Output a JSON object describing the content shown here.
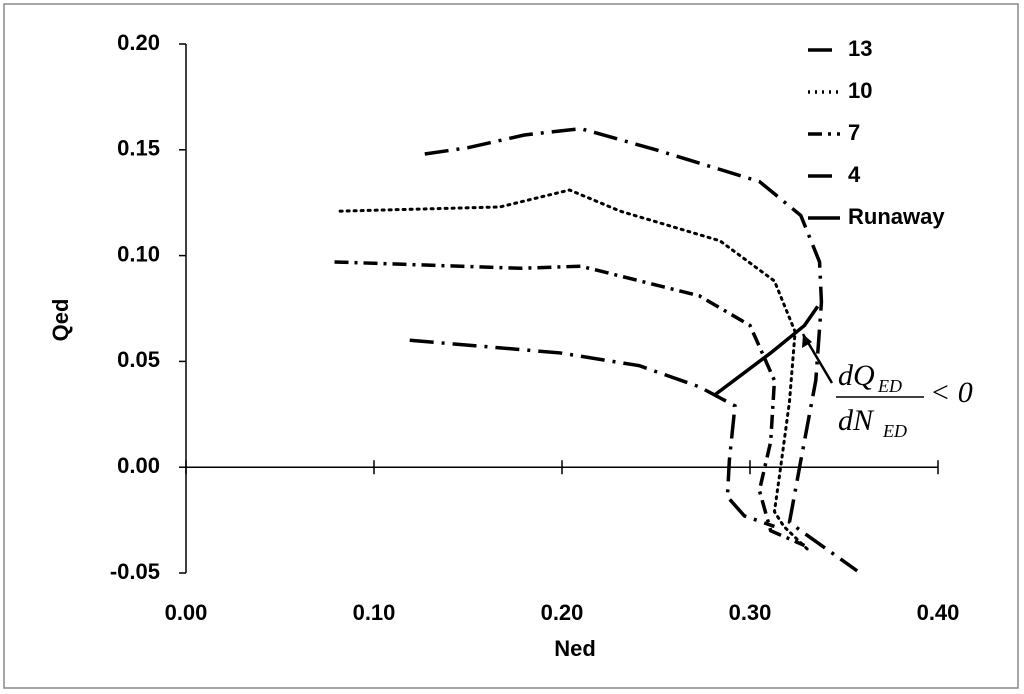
{
  "chart_data": {
    "type": "line",
    "x_label": "Ned",
    "y_label": "Qed",
    "xlim": [
      0,
      0.4
    ],
    "ylim": [
      -0.05,
      0.2
    ],
    "xticks": [
      {
        "value": 0,
        "label": "0.00"
      },
      {
        "value": 0.1,
        "label": "0.10"
      },
      {
        "value": 0.2,
        "label": "0.20"
      },
      {
        "value": 0.3,
        "label": "0.30"
      },
      {
        "value": 0.4,
        "label": "0.40"
      }
    ],
    "yticks": [
      {
        "value": 0.2,
        "label": "0.20"
      },
      {
        "value": 0.15,
        "label": "0.15"
      },
      {
        "value": 0.1,
        "label": "0.10"
      },
      {
        "value": 0.05,
        "label": "0.05"
      },
      {
        "value": 0,
        "label": "0.00"
      },
      {
        "value": -0.05,
        "label": "-0.05"
      }
    ],
    "legend": "top-right",
    "series": [
      {
        "name": "13",
        "color": "#000000",
        "style": "long-dash-dot",
        "x": [
          0.127,
          0.15,
          0.18,
          0.21,
          0.25,
          0.305,
          0.327,
          0.337,
          0.338,
          0.335,
          0.327,
          0.321,
          0.327,
          0.357
        ],
        "values": [
          0.148,
          0.151,
          0.157,
          0.16,
          0.15,
          0.135,
          0.119,
          0.097,
          0.078,
          0.041,
          0.003,
          -0.026,
          -0.03,
          -0.049
        ]
      },
      {
        "name": "10",
        "color": "#000000",
        "style": "dotted",
        "x": [
          0.082,
          0.167,
          0.204,
          0.231,
          0.284,
          0.313,
          0.324,
          0.321,
          0.316,
          0.313,
          0.318,
          0.332
        ],
        "values": [
          0.121,
          0.123,
          0.131,
          0.121,
          0.107,
          0.088,
          0.064,
          0.031,
          -0.002,
          -0.021,
          -0.028,
          -0.04
        ]
      },
      {
        "name": "7",
        "color": "#000000",
        "style": "dash-dot",
        "x": [
          0.079,
          0.178,
          0.21,
          0.273,
          0.3,
          0.313,
          0.311,
          0.305,
          0.311,
          0.329
        ],
        "values": [
          0.097,
          0.094,
          0.095,
          0.081,
          0.067,
          0.041,
          0.012,
          -0.011,
          -0.03,
          -0.037
        ]
      },
      {
        "name": "4",
        "color": "#000000",
        "style": "long-dash-dot",
        "x": [
          0.119,
          0.199,
          0.241,
          0.273,
          0.292,
          0.289,
          0.288,
          0.297,
          0.313
        ],
        "values": [
          0.06,
          0.054,
          0.048,
          0.038,
          0.029,
          0.003,
          -0.014,
          -0.023,
          -0.028
        ]
      },
      {
        "name": "Runaway",
        "color": "#000000",
        "style": "solid",
        "x": [
          0.281,
          0.311,
          0.329,
          0.336
        ],
        "values": [
          0.034,
          0.054,
          0.067,
          0.076
        ]
      }
    ],
    "annotation": {
      "numerator": "dQ",
      "numerator_sub": "ED",
      "denominator": "dN",
      "denominator_sub": "ED",
      "relation": "< 0"
    }
  }
}
